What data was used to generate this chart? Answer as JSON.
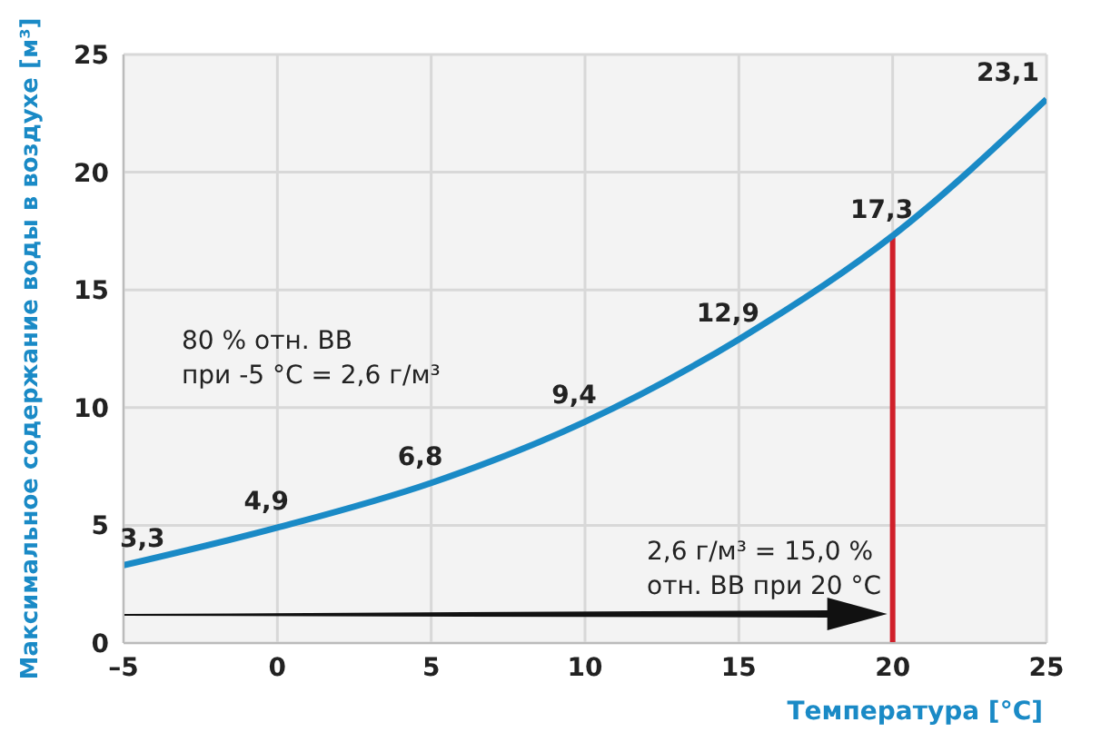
{
  "chart_data": {
    "type": "line",
    "xlabel": "Температура [°C]",
    "ylabel": "Максимальное содержание воды в воздухе [м³]",
    "x": [
      -5,
      0,
      5,
      10,
      15,
      20,
      25
    ],
    "series": [
      {
        "color": "#1a8ac6",
        "values": [
          3.3,
          4.9,
          6.8,
          9.4,
          12.9,
          17.3,
          23.1
        ],
        "value_labels": [
          "3,3",
          "4,9",
          "6,8",
          "9,4",
          "12,9",
          "17,3",
          "23,1"
        ]
      }
    ],
    "xlim": [
      -5,
      25
    ],
    "xticks": [
      {
        "value": -5,
        "label": "–5"
      },
      0,
      5,
      10,
      15,
      20,
      25
    ],
    "ylim": [
      0,
      25
    ],
    "yticks": [
      0,
      5,
      10,
      15,
      20,
      25
    ],
    "grid": true,
    "marker": "none",
    "line_style": "solid",
    "ref_lines": [
      {
        "axis": "x",
        "value": 20,
        "color": "#d0202a"
      }
    ],
    "annotations": [
      "80 % отн. ВВ\nпри -5 °C = 2,6 г/м³",
      "2,6 г/м³ = 15,0 %\nотн. ВВ при 20 °C"
    ]
  }
}
